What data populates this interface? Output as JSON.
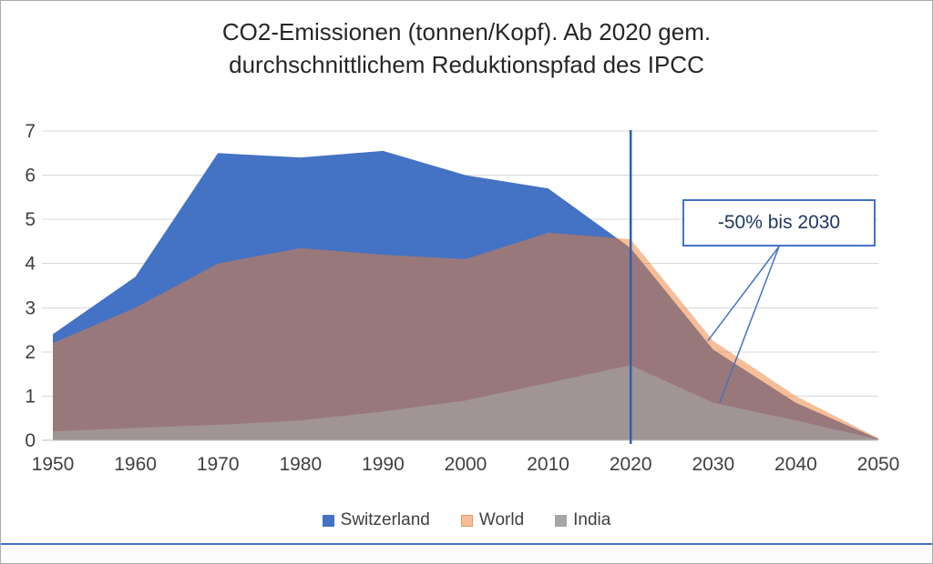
{
  "window": {
    "background": "#ffffff",
    "border_color": "#ababab"
  },
  "chart_data": {
    "type": "area",
    "title_lines": [
      "CO2-Emissionen (tonnen/Kopf). Ab 2020 gem.",
      "durchschnittlichem Reduktionspfad des IPCC"
    ],
    "x": [
      1950,
      1960,
      1970,
      1980,
      1990,
      2000,
      2010,
      2020,
      2030,
      2040,
      2050
    ],
    "series": [
      {
        "name": "Switzerland",
        "color": "#4472C4",
        "fill_opacity": 1.0,
        "legend_color": "#4472C4",
        "values": [
          2.4,
          3.7,
          6.5,
          6.4,
          6.55,
          6.0,
          5.7,
          4.35,
          2.05,
          0.85,
          0.03
        ]
      },
      {
        "name": "World",
        "color": "#ED7D31",
        "fill_opacity": 0.5,
        "legend_color": "#F5BE9A",
        "legend_border": "#DD9B64",
        "values": [
          2.2,
          3.0,
          4.0,
          4.35,
          4.2,
          4.1,
          4.7,
          4.55,
          2.25,
          1.0,
          0.05
        ]
      },
      {
        "name": "India",
        "color": "#A6A6A6",
        "fill_opacity": 0.6,
        "legend_color": "#A6A6A6",
        "values": [
          0.2,
          0.28,
          0.35,
          0.45,
          0.65,
          0.9,
          1.3,
          1.7,
          0.85,
          0.45,
          0.02
        ]
      }
    ],
    "ylim": [
      0,
      7
    ],
    "yticks": [
      0,
      1,
      2,
      3,
      4,
      5,
      6,
      7
    ],
    "xlabel": "",
    "ylabel": "",
    "grid": "horizontal",
    "grid_color": "#D9D9D9",
    "axis_color": "#BFBFBF",
    "tick_color": "#404040",
    "legend_position": "bottom",
    "vline": {
      "x": 2020,
      "color": "#2E5FAC",
      "width": 2.5
    },
    "annotation": {
      "text": "-50% bis 2030",
      "target_year": 2030,
      "border_color": "#4472C4",
      "text_color": "#1F3864"
    }
  }
}
